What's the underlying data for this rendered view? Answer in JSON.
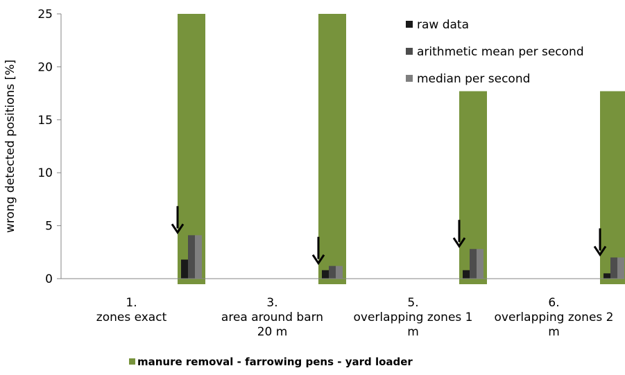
{
  "chart_data": {
    "type": "bar",
    "ylabel": "wrong detected positions [%]",
    "ylim": [
      0,
      25
    ],
    "yticks": [
      0,
      5,
      10,
      15,
      20,
      25
    ],
    "categories": [
      [
        "1.",
        "zones exact"
      ],
      [
        "3.",
        "area around barn",
        "20 m"
      ],
      [
        "5.",
        "overlapping zones 1",
        "m"
      ],
      [
        "6.",
        "overlapping zones 2",
        "m"
      ]
    ],
    "background_series": {
      "name": "manure removal - farrowing pens - yard loader",
      "color": "#77933c",
      "values": [
        25,
        25,
        17.7,
        17.7
      ]
    },
    "series": [
      {
        "name": "raw data",
        "color": "#1a1a1a",
        "values": [
          1.8,
          0.8,
          0.8,
          0.5
        ]
      },
      {
        "name": "arithmetic mean per second",
        "color": "#4d4d4d",
        "values": [
          4.1,
          1.2,
          2.8,
          2.0
        ]
      },
      {
        "name": "median per second",
        "color": "#7f7f7f",
        "values": [
          4.1,
          1.2,
          2.8,
          2.0
        ]
      }
    ],
    "annotations": [
      "down-arrow",
      "down-arrow",
      "down-arrow",
      "down-arrow"
    ],
    "legend_position": "top-right",
    "grid": false
  }
}
